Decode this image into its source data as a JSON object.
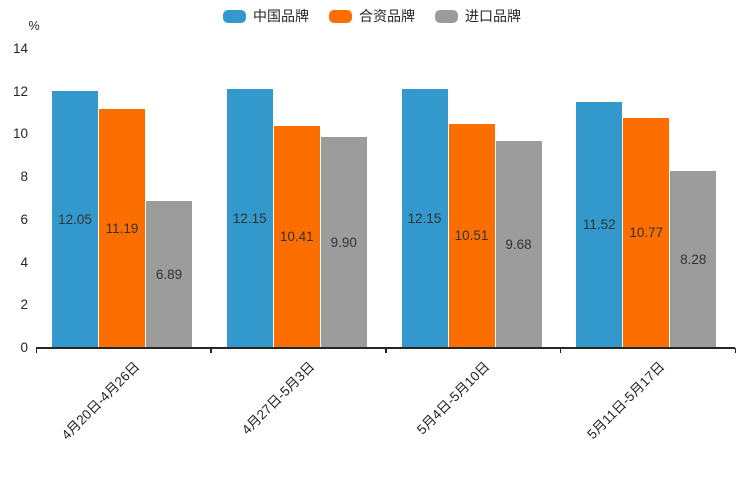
{
  "y_axis": {
    "unit_label": "%"
  },
  "chart_data": {
    "type": "bar",
    "title": "",
    "xlabel": "",
    "ylabel": "%",
    "categories": [
      "4月20日-4月26日",
      "4月27日-5月3日",
      "5月4日-5月10日",
      "5月11日-5月17日"
    ],
    "series": [
      {
        "name": "中国品牌",
        "color": "#3398CB",
        "values": [
          12.05,
          12.15,
          12.15,
          11.52
        ]
      },
      {
        "name": "合资品牌",
        "color": "#FD6E00",
        "values": [
          11.19,
          10.41,
          10.51,
          10.77
        ]
      },
      {
        "name": "进口品牌",
        "color": "#9C9C9C",
        "values": [
          6.89,
          9.9,
          9.68,
          8.28
        ]
      }
    ],
    "ylim": [
      0,
      14
    ],
    "yticks": [
      0,
      2,
      4,
      6,
      8,
      10,
      12,
      14
    ],
    "value_labels": "inside-center, 2 decimals",
    "legend_position": "top-center",
    "grid": false,
    "axis_color": "#262626",
    "label_color": "#333333"
  }
}
